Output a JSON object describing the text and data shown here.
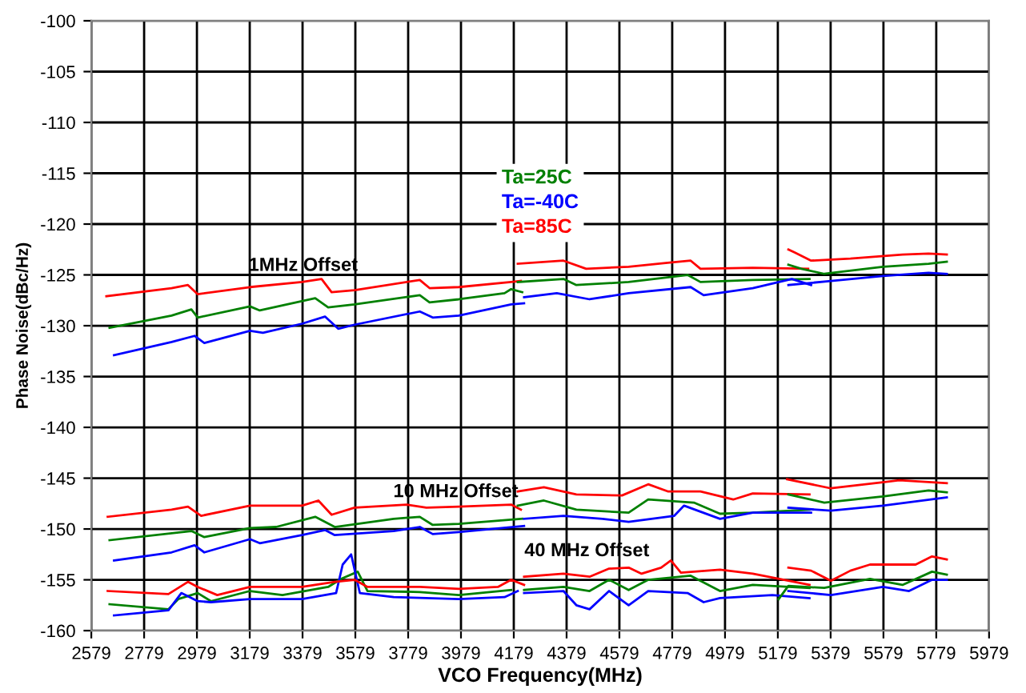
{
  "chart_data": {
    "type": "line",
    "xlabel": "VCO Frequency(MHz)",
    "ylabel": "Phase Noise(dBc/Hz)",
    "xlim": [
      2579,
      5979
    ],
    "xticks": [
      2579,
      2779,
      2979,
      3179,
      3379,
      3579,
      3779,
      3979,
      4179,
      4379,
      4579,
      4779,
      4979,
      5179,
      5379,
      5579,
      5779,
      5979
    ],
    "ylim": [
      -160,
      -100
    ],
    "yticks": [
      -160,
      -155,
      -150,
      -145,
      -140,
      -135,
      -130,
      -125,
      -120,
      -115,
      -110,
      -105,
      -100
    ],
    "grid": true,
    "legend": "top",
    "marker": "none",
    "line_style": "solid",
    "annotations": [
      "1MHz Offset",
      "10 MHz Offset",
      "40 MHz Offset"
    ],
    "series": [
      {
        "name": "Ta=25C",
        "color": "#008000",
        "x": [
          2648,
          2883,
          2958,
          2982,
          3180,
          3217,
          3427,
          3476,
          3576,
          3823,
          3860,
          3971,
          4144,
          4169,
          4211
        ],
        "values": [
          -130.2,
          -129.0,
          -128.4,
          -129.2,
          -128.1,
          -128.5,
          -127.3,
          -128.2,
          -127.9,
          -127.0,
          -127.7,
          -127.4,
          -126.8,
          -126.4,
          -126.7
        ]
      },
      {
        "name": "Ta=-40C",
        "color": "#0000ff",
        "x": [
          2665,
          2883,
          2970,
          3007,
          3180,
          3229,
          3377,
          3464,
          3514,
          3576,
          3823,
          3872,
          3971,
          4169,
          4218
        ],
        "values": [
          -132.9,
          -131.6,
          -131.0,
          -131.7,
          -130.5,
          -130.7,
          -129.8,
          -129.1,
          -130.3,
          -129.9,
          -128.6,
          -129.2,
          -129.0,
          -127.9,
          -127.8
        ]
      },
      {
        "name": "Ta=85C",
        "color": "#ff0000",
        "x": [
          2636,
          2883,
          2945,
          2982,
          3180,
          3377,
          3451,
          3489,
          3576,
          3823,
          3860,
          3971,
          4169,
          4206
        ],
        "values": [
          -127.1,
          -126.3,
          -126.0,
          -126.9,
          -126.2,
          -125.7,
          -125.4,
          -126.7,
          -126.5,
          -125.5,
          -126.3,
          -126.2,
          -125.7,
          -125.6
        ]
      },
      {
        "color": "#008000",
        "x": [
          4194,
          4367,
          4416,
          4614,
          4837,
          4886,
          5084,
          5299
        ],
        "values": [
          -125.7,
          -125.4,
          -126.0,
          -125.7,
          -125.0,
          -125.7,
          -125.5,
          -125.4
        ]
      },
      {
        "color": "#0000ff",
        "x": [
          4218,
          4342,
          4466,
          4614,
          4849,
          4898,
          5084,
          5232,
          5305
        ],
        "values": [
          -127.2,
          -126.8,
          -127.4,
          -126.8,
          -126.2,
          -127.0,
          -126.3,
          -125.4,
          -126.0
        ]
      },
      {
        "color": "#ff0000",
        "x": [
          4194,
          4367,
          4453,
          4614,
          4762,
          4849,
          4886,
          5084,
          5294
        ],
        "values": [
          -123.9,
          -123.6,
          -124.4,
          -124.2,
          -123.8,
          -123.6,
          -124.4,
          -124.3,
          -124.4
        ]
      },
      {
        "color": "#008000",
        "x": [
          5219,
          5268,
          5355,
          5577,
          5750,
          5819
        ],
        "values": [
          -124.0,
          -124.4,
          -124.9,
          -124.2,
          -123.9,
          -123.7
        ]
      },
      {
        "color": "#0000ff",
        "x": [
          5219,
          5380,
          5577,
          5750,
          5819
        ],
        "values": [
          -126.0,
          -125.6,
          -125.1,
          -124.8,
          -124.9
        ]
      },
      {
        "color": "#ff0000",
        "x": [
          5219,
          5243,
          5305,
          5454,
          5651,
          5750,
          5819
        ],
        "values": [
          -122.5,
          -122.8,
          -123.6,
          -123.4,
          -123.0,
          -122.9,
          -123.0
        ]
      },
      {
        "color": "#008000",
        "x": [
          2648,
          2958,
          3007,
          3180,
          3279,
          3427,
          3501,
          3724,
          3823,
          3872,
          3971,
          4211
        ],
        "values": [
          -151.1,
          -150.2,
          -150.8,
          -149.9,
          -149.8,
          -148.8,
          -149.8,
          -149.0,
          -148.8,
          -149.6,
          -149.5,
          -149.0
        ]
      },
      {
        "color": "#0000ff",
        "x": [
          2665,
          2883,
          2970,
          3007,
          3180,
          3217,
          3377,
          3464,
          3501,
          3724,
          3823,
          3872,
          3971,
          4218
        ],
        "values": [
          -153.1,
          -152.3,
          -151.6,
          -152.3,
          -151.0,
          -151.4,
          -150.6,
          -150.1,
          -150.6,
          -150.2,
          -149.8,
          -150.5,
          -150.3,
          -149.7
        ]
      },
      {
        "color": "#ff0000",
        "x": [
          2641,
          2883,
          2945,
          2995,
          3180,
          3377,
          3439,
          3489,
          3576,
          3773,
          3848,
          3971,
          4169,
          4206
        ],
        "values": [
          -148.8,
          -148.1,
          -147.8,
          -148.7,
          -147.7,
          -147.7,
          -147.2,
          -148.6,
          -147.9,
          -147.6,
          -147.9,
          -147.8,
          -147.6,
          -148.1
        ]
      },
      {
        "color": "#008000",
        "x": [
          4194,
          4293,
          4416,
          4614,
          4688,
          4861,
          4960,
          5084,
          5299
        ],
        "values": [
          -147.7,
          -147.2,
          -148.1,
          -148.4,
          -147.1,
          -147.4,
          -148.5,
          -148.4,
          -148.1
        ]
      },
      {
        "color": "#0000ff",
        "x": [
          4218,
          4367,
          4515,
          4614,
          4787,
          4824,
          4960,
          5084,
          5305
        ],
        "values": [
          -149.0,
          -148.7,
          -149.0,
          -149.3,
          -148.7,
          -147.7,
          -149.0,
          -148.4,
          -148.4
        ]
      },
      {
        "color": "#ff0000",
        "x": [
          4194,
          4293,
          4416,
          4589,
          4688,
          4762,
          4886,
          5010,
          5084,
          5299
        ],
        "values": [
          -146.3,
          -145.9,
          -146.6,
          -146.7,
          -145.6,
          -146.3,
          -146.3,
          -147.1,
          -146.5,
          -146.6
        ]
      },
      {
        "color": "#008000",
        "x": [
          5219,
          5355,
          5577,
          5750,
          5819
        ],
        "values": [
          -146.6,
          -147.4,
          -146.8,
          -146.2,
          -146.4
        ]
      },
      {
        "color": "#0000ff",
        "x": [
          5219,
          5380,
          5577,
          5819
        ],
        "values": [
          -147.9,
          -148.2,
          -147.7,
          -146.9
        ]
      },
      {
        "color": "#ff0000",
        "x": [
          5214,
          5380,
          5577,
          5639,
          5819
        ],
        "values": [
          -145.1,
          -146.0,
          -145.4,
          -145.2,
          -145.5
        ]
      },
      {
        "color": "#008000",
        "x": [
          2648,
          2871,
          2908,
          2982,
          3032,
          3180,
          3303,
          3476,
          3526,
          3588,
          3625,
          3823,
          3971,
          4169
        ],
        "values": [
          -157.4,
          -157.9,
          -156.9,
          -156.3,
          -157.1,
          -156.1,
          -156.5,
          -155.7,
          -154.9,
          -154.2,
          -156.1,
          -156.2,
          -156.5,
          -156.0
        ]
      },
      {
        "color": "#0000ff",
        "x": [
          2665,
          2871,
          2920,
          2982,
          3032,
          3180,
          3377,
          3506,
          3531,
          3563,
          3596,
          3724,
          3971,
          4144,
          4194
        ],
        "values": [
          -158.5,
          -158.0,
          -156.3,
          -157.1,
          -157.2,
          -156.9,
          -156.9,
          -156.3,
          -153.5,
          -152.5,
          -156.3,
          -156.7,
          -156.9,
          -156.7,
          -156.1
        ]
      },
      {
        "color": "#ff0000",
        "x": [
          2641,
          2871,
          2945,
          2982,
          3056,
          3180,
          3377,
          3501,
          3576,
          3625,
          3823,
          3971,
          4119,
          4169,
          4218
        ],
        "values": [
          -156.1,
          -156.4,
          -155.2,
          -155.7,
          -156.5,
          -155.7,
          -155.7,
          -155.2,
          -155.0,
          -155.7,
          -155.7,
          -155.9,
          -155.7,
          -155.0,
          -155.5
        ]
      },
      {
        "color": "#008000",
        "x": [
          4218,
          4367,
          4466,
          4540,
          4614,
          4688,
          4849,
          4960,
          5084,
          5299
        ],
        "values": [
          -156.0,
          -155.7,
          -156.1,
          -155.0,
          -156.0,
          -155.0,
          -154.6,
          -156.1,
          -155.5,
          -155.8
        ]
      },
      {
        "color": "#0000ff",
        "x": [
          4218,
          4367,
          4416,
          4466,
          4540,
          4614,
          4688,
          4837,
          4898,
          4960,
          5158,
          5299
        ],
        "values": [
          -156.3,
          -156.1,
          -157.5,
          -157.9,
          -156.1,
          -157.5,
          -156.1,
          -156.3,
          -157.2,
          -156.8,
          -156.5,
          -156.8
        ]
      },
      {
        "color": "#ff0000",
        "x": [
          4218,
          4367,
          4466,
          4540,
          4614,
          4663,
          4737,
          4774,
          4812,
          4960,
          5084,
          5299
        ],
        "values": [
          -154.7,
          -154.4,
          -154.7,
          -153.9,
          -153.8,
          -154.4,
          -153.8,
          -153.1,
          -154.3,
          -154.0,
          -154.4,
          -155.5
        ]
      },
      {
        "color": "#008000",
        "x": [
          5182,
          5219,
          5355,
          5528,
          5651,
          5763,
          5819
        ],
        "values": [
          -156.9,
          -155.6,
          -155.8,
          -154.9,
          -155.5,
          -154.2,
          -154.5
        ]
      },
      {
        "color": "#0000ff",
        "x": [
          5219,
          5380,
          5577,
          5676,
          5763,
          5819
        ],
        "values": [
          -156.1,
          -156.5,
          -155.7,
          -156.1,
          -155.0,
          -155.0
        ]
      },
      {
        "color": "#ff0000",
        "x": [
          5219,
          5305,
          5380,
          5454,
          5528,
          5701,
          5763,
          5819
        ],
        "values": [
          -153.8,
          -154.1,
          -155.1,
          -154.1,
          -153.5,
          -153.5,
          -152.7,
          -153.0
        ]
      }
    ]
  }
}
